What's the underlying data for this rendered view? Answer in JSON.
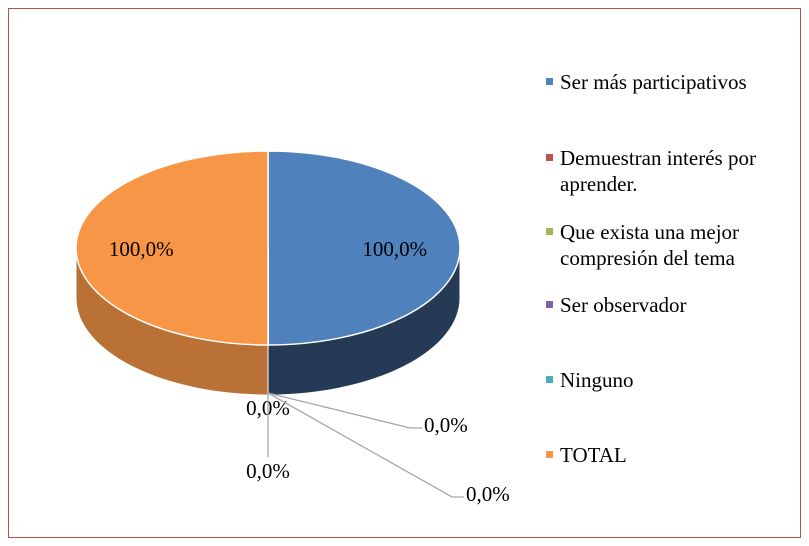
{
  "chart_data": {
    "type": "pie3d",
    "categories": [
      "Ser más participativos",
      "Demuestran interés por aprender.",
      "Que exista una mejor compresión del tema",
      "Ser observador",
      "Ninguno",
      "TOTAL"
    ],
    "values": [
      100,
      0,
      0,
      0,
      0,
      100
    ],
    "value_labels": [
      "100,0%",
      "0,0%",
      "0,0%",
      "0,0%",
      "0,0%",
      "100,0%"
    ],
    "colors": [
      "#4f81bd",
      "#c0504d",
      "#9bbb59",
      "#8064a2",
      "#4bacc6",
      "#f79646"
    ],
    "legend": "right"
  }
}
